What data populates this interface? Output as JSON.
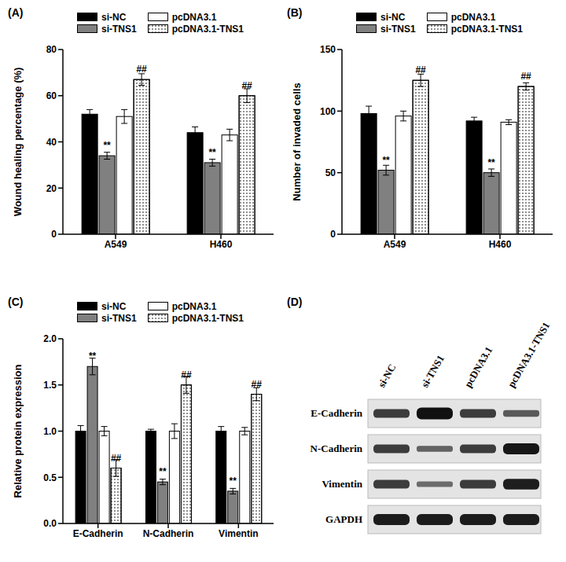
{
  "chart_data": [
    {
      "type": "bar",
      "title": "(A)",
      "ylabel": "Wound healing percentage (%)",
      "categories": [
        "A549",
        "H460"
      ],
      "ylim": [
        0,
        80
      ],
      "yticks": [
        0,
        20,
        40,
        60,
        80
      ],
      "legend": "top",
      "series": [
        {
          "name": "si-NC",
          "color": "#000000",
          "values": [
            52,
            44
          ],
          "errors": [
            2,
            2.5
          ],
          "annotations": [
            null,
            null
          ]
        },
        {
          "name": "si-TNS1",
          "color": "#808080",
          "values": [
            34,
            31
          ],
          "errors": [
            1.5,
            1.5
          ],
          "annotations": [
            "**",
            "**"
          ]
        },
        {
          "name": "pcDNA3.1",
          "color": "#ffffff",
          "values": [
            51,
            43
          ],
          "errors": [
            3,
            2.5
          ],
          "annotations": [
            null,
            null
          ]
        },
        {
          "name": "pcDNA3.1-TNS1",
          "color": "#ffffff",
          "values": [
            67,
            60
          ],
          "errors": [
            2.5,
            3
          ],
          "annotations": [
            "##",
            "##"
          ]
        }
      ]
    },
    {
      "type": "bar",
      "title": "(B)",
      "ylabel": "Number of invaded cells",
      "categories": [
        "A549",
        "H460"
      ],
      "ylim": [
        0,
        150
      ],
      "yticks": [
        0,
        50,
        100,
        150
      ],
      "legend": "top",
      "series": [
        {
          "name": "si-NC",
          "color": "#000000",
          "values": [
            98,
            92
          ],
          "errors": [
            6,
            3
          ],
          "annotations": [
            null,
            null
          ]
        },
        {
          "name": "si-TNS1",
          "color": "#808080",
          "values": [
            52,
            50
          ],
          "errors": [
            4,
            3
          ],
          "annotations": [
            "**",
            "**"
          ]
        },
        {
          "name": "pcDNA3.1",
          "color": "#ffffff",
          "values": [
            96,
            91
          ],
          "errors": [
            4,
            2
          ],
          "annotations": [
            null,
            null
          ]
        },
        {
          "name": "pcDNA3.1-TNS1",
          "color": "#ffffff",
          "values": [
            125,
            120
          ],
          "errors": [
            5,
            3
          ],
          "annotations": [
            "##",
            "##"
          ]
        }
      ]
    },
    {
      "type": "bar",
      "title": "(C)",
      "ylabel": "Relative protein expression",
      "categories": [
        "E-Cadherin",
        "N-Cadherin",
        "Vimentin"
      ],
      "ylim": [
        0,
        2
      ],
      "yticks": [
        {
          "value": 0,
          "label": "0.0"
        },
        0.5,
        {
          "value": 1,
          "label": "1.0"
        },
        1.5,
        {
          "value": 2,
          "label": "2.0"
        }
      ],
      "legend": "top",
      "series": [
        {
          "name": "si-NC",
          "color": "#000000",
          "values": [
            1,
            1,
            1
          ],
          "errors": [
            0.06,
            0.02,
            0.05
          ],
          "annotations": [
            null,
            null,
            null
          ]
        },
        {
          "name": "si-TNS1",
          "color": "#808080",
          "values": [
            1.7,
            0.45,
            0.35
          ],
          "errors": [
            0.09,
            0.03,
            0.03
          ],
          "annotations": [
            "**",
            "**",
            "**"
          ]
        },
        {
          "name": "pcDNA3.1",
          "color": "#ffffff",
          "values": [
            1,
            1,
            1
          ],
          "errors": [
            0.05,
            0.08,
            0.04
          ],
          "annotations": [
            null,
            null,
            null
          ]
        },
        {
          "name": "pcDNA3.1-TNS1",
          "color": "#ffffff",
          "values": [
            0.6,
            1.5,
            1.4
          ],
          "errors": [
            0.09,
            0.09,
            0.07
          ],
          "annotations": [
            "##",
            "##",
            "##"
          ]
        }
      ]
    }
  ],
  "blot": {
    "title": "(D)",
    "lanes": [
      "si-NC",
      "si-TNS1",
      "pcDNA3.1",
      "pcDNA3.1-TNS1"
    ],
    "rows": [
      "E-Cadherin",
      "N-Cadherin",
      "Vimentin",
      "GAPDH"
    ]
  }
}
